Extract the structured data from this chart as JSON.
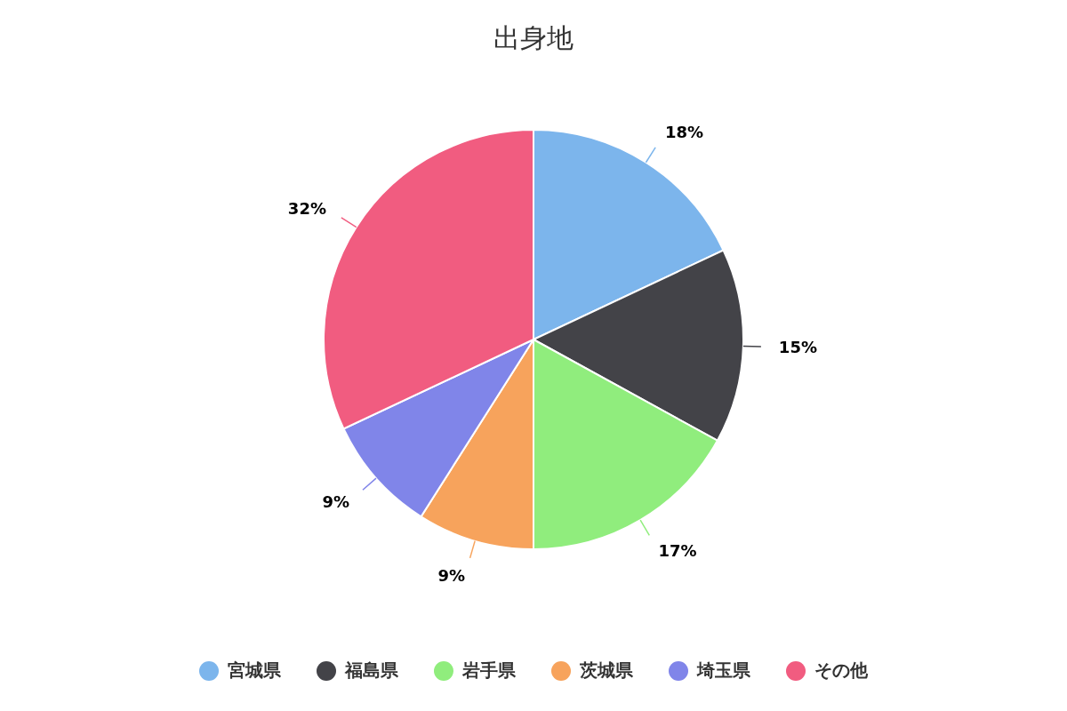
{
  "chart_data": {
    "type": "pie",
    "title": "出身地",
    "categories": [
      "宮城県",
      "福島県",
      "岩手県",
      "茨城県",
      "埼玉県",
      "その他"
    ],
    "values": [
      18,
      15,
      17,
      9,
      9,
      32
    ],
    "colors": [
      "#7cb5ec",
      "#434348",
      "#90ed7d",
      "#f7a35c",
      "#8085e9",
      "#f15c80"
    ],
    "value_labels": [
      "18%",
      "15%",
      "17%",
      "9%",
      "9%",
      "32%"
    ],
    "legend": "bottom"
  }
}
